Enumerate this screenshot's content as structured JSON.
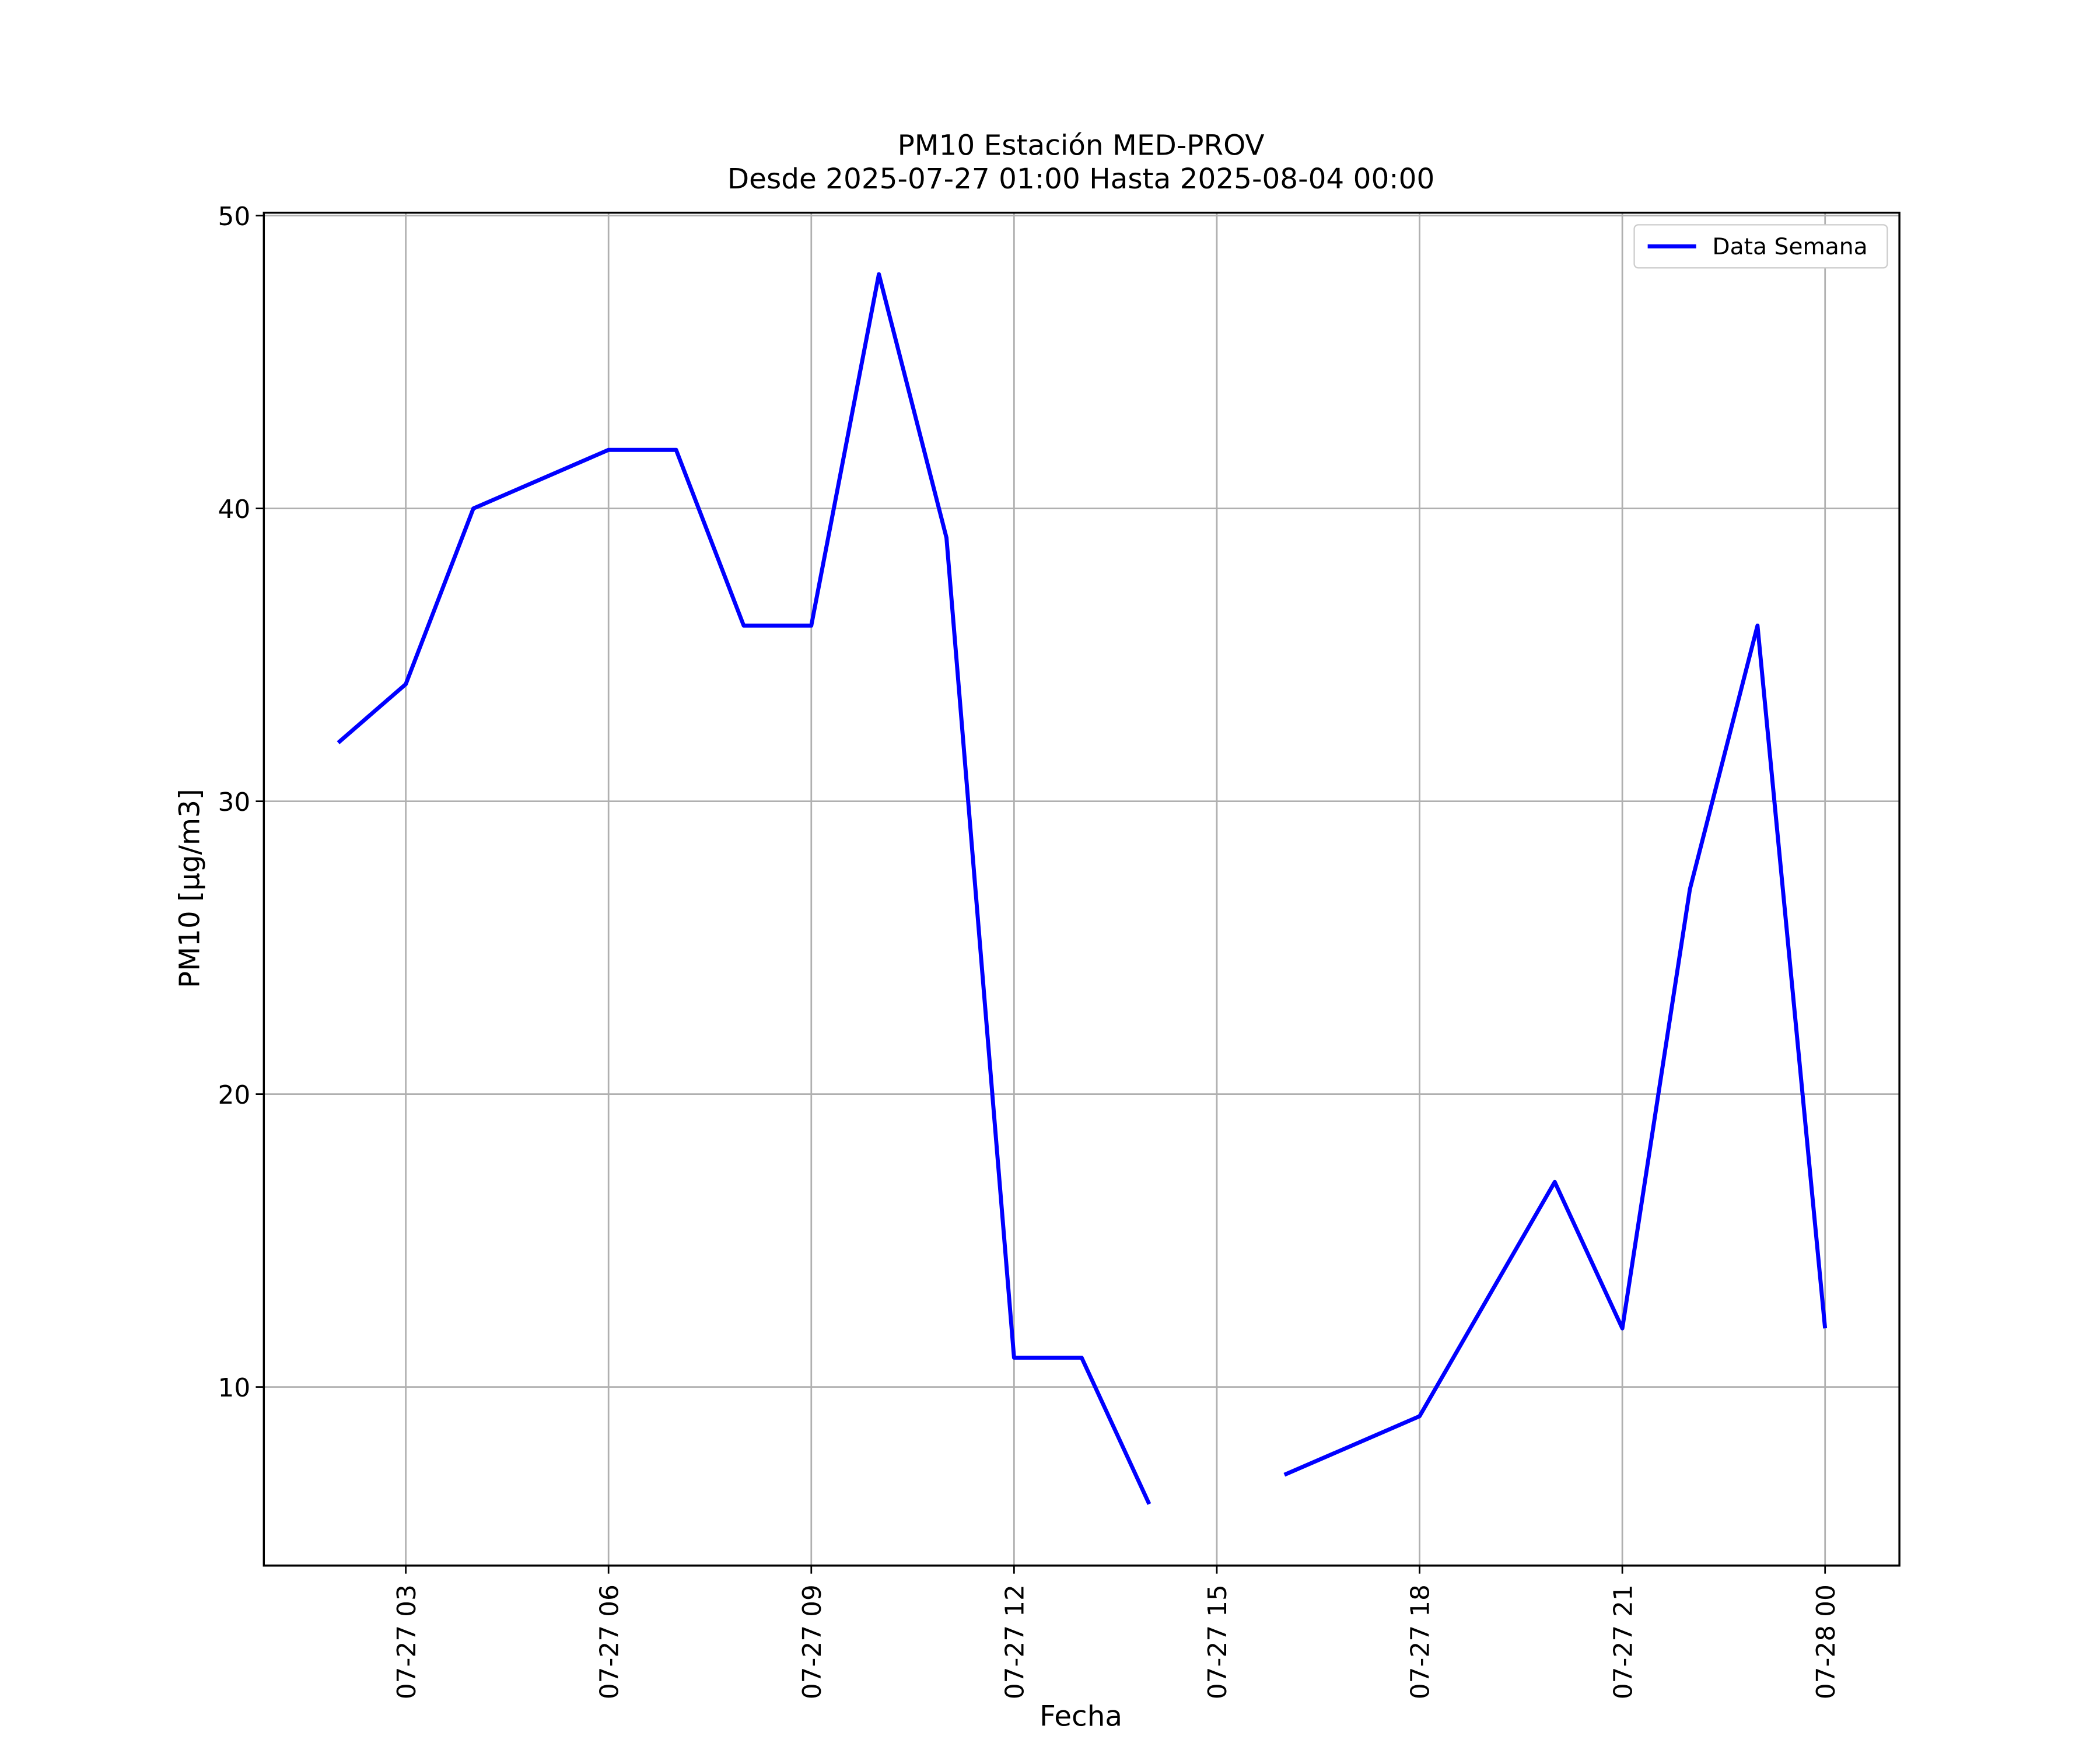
{
  "chart_data": {
    "type": "line",
    "title": "PM10 Estación MED-PROV",
    "subtitle": "Desde 2025-07-27 01:00 Hasta 2025-08-04 00:00",
    "x_label": "Fecha",
    "y_label": "PM10 [μg/m3]",
    "x": [
      "07-27 02",
      "07-27 03",
      "07-27 04",
      "07-27 05",
      "07-27 06",
      "07-27 07",
      "07-27 08",
      "07-27 09",
      "07-27 10",
      "07-27 11",
      "07-27 12",
      "07-27 13",
      "07-27 14",
      "07-27 15",
      "07-27 16",
      "07-27 17",
      "07-27 18",
      "07-27 19",
      "07-27 20",
      "07-27 21",
      "07-27 22",
      "07-27 23",
      "07-28 00"
    ],
    "series": [
      {
        "name": "Data Semana",
        "color": "#0000ff",
        "values": [
          32,
          34,
          40,
          41,
          42,
          42,
          36,
          36,
          48,
          39,
          11,
          11,
          6,
          null,
          7,
          8,
          9,
          13,
          17,
          12,
          27,
          36,
          12
        ]
      }
    ],
    "xlim": [
      "07-27 00:54",
      "07-28 01:06"
    ],
    "xticks": [
      "07-27 03",
      "07-27 06",
      "07-27 09",
      "07-27 12",
      "07-27 15",
      "07-27 18",
      "07-27 21",
      "07-28 00"
    ],
    "ylim": [
      3.9,
      50.1
    ],
    "yticks": [
      10,
      20,
      30,
      40,
      50
    ],
    "grid": true,
    "legend": "upper-right"
  }
}
